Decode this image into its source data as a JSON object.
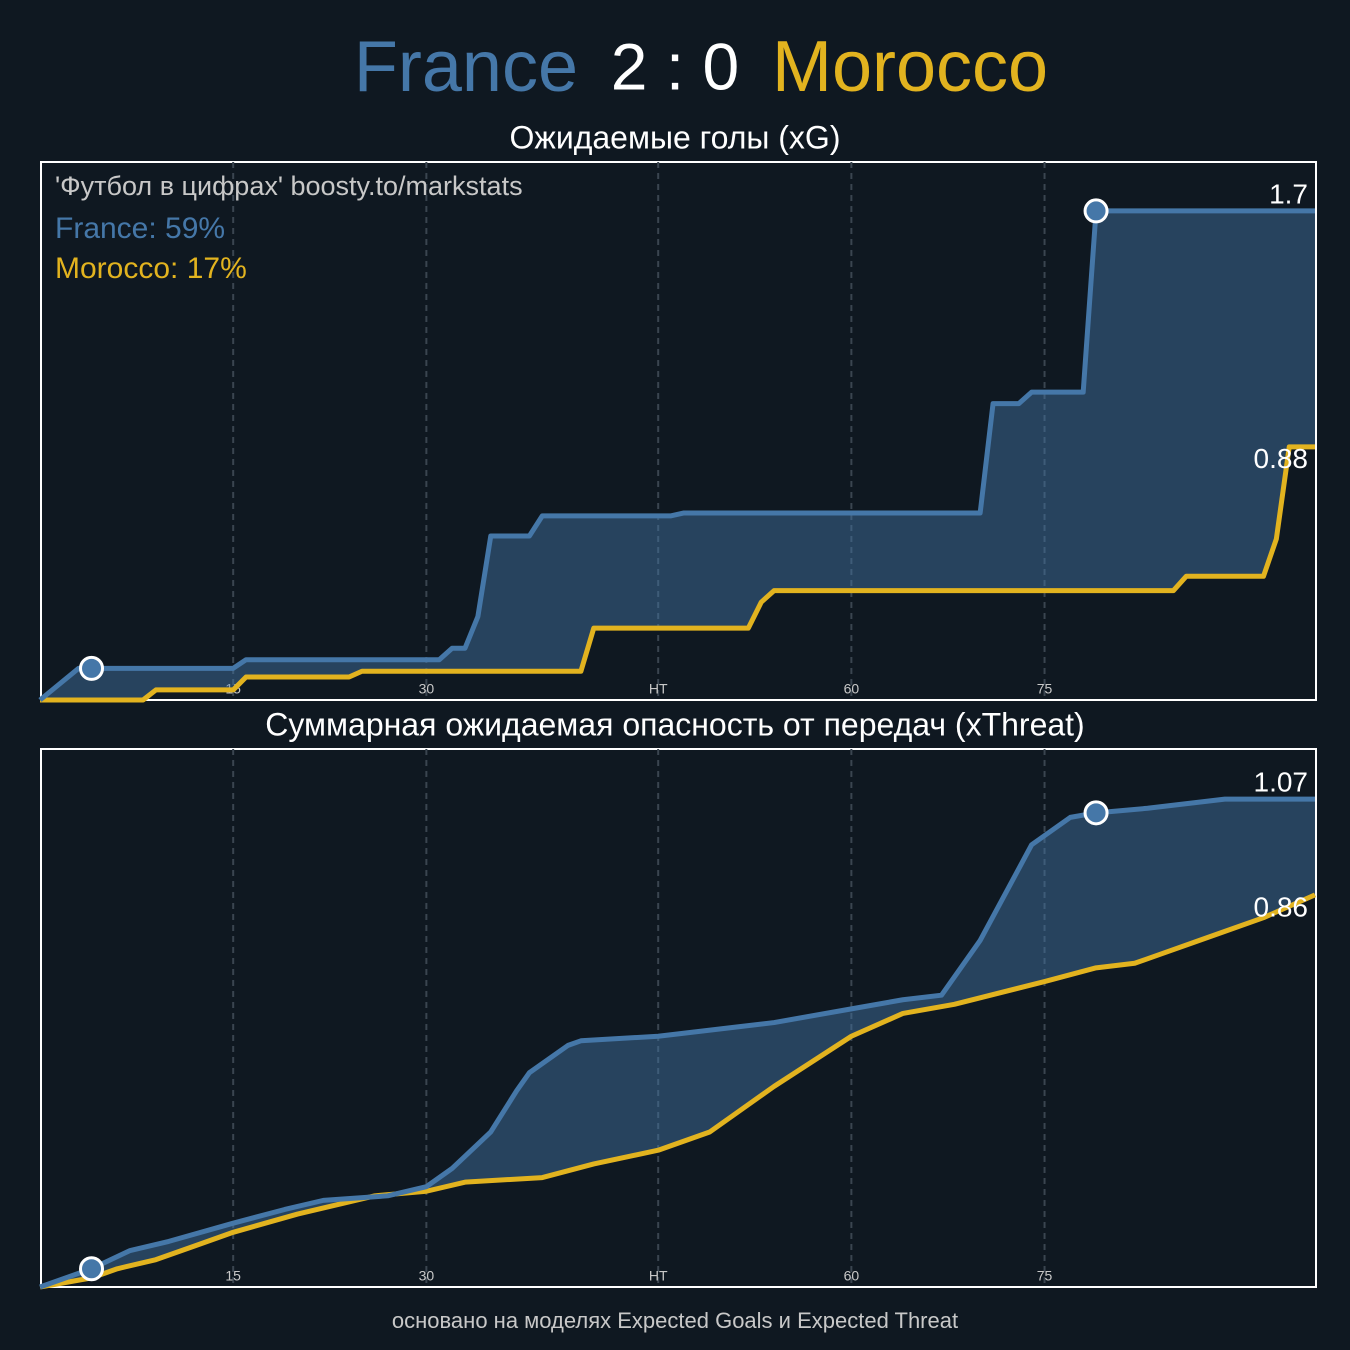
{
  "header": {
    "home": "France",
    "score": "2 : 0",
    "away": "Morocco",
    "home_color": "#4577a8",
    "away_color": "#e2b31f"
  },
  "footer": "основано на моделях Expected Goals и Expected Threat",
  "chart_data": [
    {
      "type": "line",
      "title": "Ожидаемые голы (xG)",
      "annotations": [
        "'Футбол в цифрах' boosty.to/markstats",
        "France: 59%",
        "Morocco: 17%"
      ],
      "xlim": [
        0,
        99
      ],
      "ylim": [
        0,
        1.87
      ],
      "xticks": [
        15,
        30,
        {
          "value": 48,
          "label": "HT"
        },
        {
          "value": 63,
          "label": "60"
        },
        {
          "value": 78,
          "label": "75"
        }
      ],
      "grid": true,
      "step": true,
      "series": [
        {
          "name": "France",
          "color": "#4577a8",
          "end_label": "1.7",
          "x": [
            0,
            3,
            4,
            15,
            16,
            31,
            32,
            33,
            34,
            35,
            38,
            39,
            49,
            50,
            73,
            74,
            76,
            77,
            81,
            82,
            99
          ],
          "values": [
            0,
            0.11,
            0.11,
            0.11,
            0.14,
            0.14,
            0.18,
            0.18,
            0.29,
            0.57,
            0.57,
            0.64,
            0.64,
            0.65,
            0.65,
            1.03,
            1.03,
            1.07,
            1.07,
            1.7,
            1.7
          ]
        },
        {
          "name": "Morocco",
          "color": "#e2b31f",
          "end_label": "0.88",
          "x": [
            0,
            8,
            9,
            15,
            16,
            24,
            25,
            42,
            43,
            55,
            56,
            57,
            88,
            89,
            95,
            96,
            97,
            99
          ],
          "values": [
            0,
            0,
            0.035,
            0.035,
            0.08,
            0.08,
            0.1,
            0.1,
            0.25,
            0.25,
            0.34,
            0.38,
            0.38,
            0.43,
            0.43,
            0.56,
            0.88,
            0.88
          ]
        }
      ],
      "goals": {
        "x": [
          4,
          82
        ],
        "values": [
          0.11,
          1.7
        ]
      }
    },
    {
      "type": "line",
      "title": "Суммарная ожидаемая опасность от передач (xThreat)",
      "xlim": [
        0,
        99
      ],
      "ylim": [
        0,
        1.18
      ],
      "xticks": [
        15,
        30,
        {
          "value": 48,
          "label": "HT"
        },
        {
          "value": 63,
          "label": "60"
        },
        {
          "value": 78,
          "label": "75"
        }
      ],
      "grid": true,
      "series": [
        {
          "name": "France",
          "color": "#4577a8",
          "end_label": "1.07",
          "x": [
            0,
            4,
            7,
            10,
            15,
            19,
            22,
            27,
            30,
            32,
            35,
            37,
            38,
            41,
            42,
            48,
            54,
            57,
            63,
            67,
            70,
            73,
            77,
            80,
            82,
            86,
            92,
            99
          ],
          "values": [
            0,
            0.04,
            0.08,
            0.1,
            0.14,
            0.17,
            0.19,
            0.2,
            0.22,
            0.26,
            0.34,
            0.43,
            0.47,
            0.53,
            0.54,
            0.55,
            0.57,
            0.58,
            0.61,
            0.63,
            0.64,
            0.76,
            0.97,
            1.03,
            1.04,
            1.05,
            1.07,
            1.07
          ]
        },
        {
          "name": "Morocco",
          "color": "#e2b31f",
          "end_label": "0.86",
          "x": [
            0,
            4,
            6,
            9,
            12,
            15,
            20,
            26,
            30,
            33,
            39,
            43,
            48,
            50,
            52,
            54,
            57,
            63,
            67,
            71,
            78,
            82,
            85,
            87,
            90,
            92,
            95,
            99
          ],
          "values": [
            0,
            0.02,
            0.04,
            0.06,
            0.09,
            0.12,
            0.16,
            0.2,
            0.21,
            0.23,
            0.24,
            0.27,
            0.3,
            0.32,
            0.34,
            0.38,
            0.44,
            0.55,
            0.6,
            0.62,
            0.67,
            0.7,
            0.71,
            0.73,
            0.76,
            0.78,
            0.81,
            0.86
          ]
        }
      ],
      "goals": {
        "x": [
          4,
          82
        ],
        "values": [
          0.04,
          1.04
        ]
      }
    }
  ]
}
